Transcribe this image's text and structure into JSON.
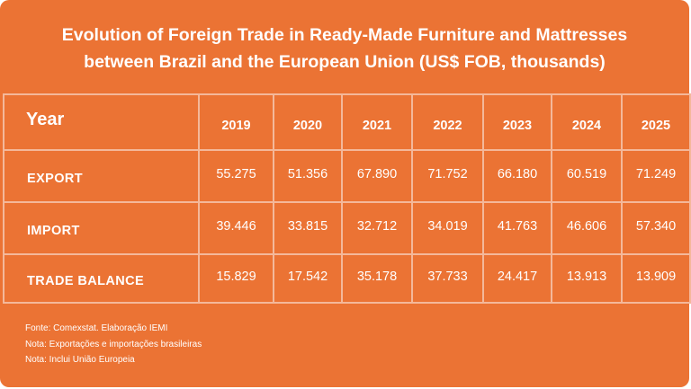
{
  "title": {
    "line1": "Evolution of Foreign Trade in Ready-Made Furniture and Mattresses",
    "line2": "between Brazil and the European Union (US$ FOB, thousands)"
  },
  "table": {
    "year_header": "Year",
    "years": [
      "2019",
      "2020",
      "2021",
      "2022",
      "2023",
      "2024",
      "2025"
    ],
    "rows": [
      {
        "label": "EXPORT",
        "values": [
          "55.275",
          "51.356",
          "67.890",
          "71.752",
          "66.180",
          "60.519",
          "71.249"
        ]
      },
      {
        "label": "IMPORT",
        "values": [
          "39.446",
          "33.815",
          "32.712",
          "34.019",
          "41.763",
          "46.606",
          "57.340"
        ]
      },
      {
        "label": "TRADE BALANCE",
        "values": [
          "15.829",
          "17.542",
          "35.178",
          "37.733",
          "24.417",
          "13.913",
          "13.909"
        ]
      }
    ]
  },
  "notes": [
    "Fonte: Comexstat. Elaboração IEMI",
    "Nota: Exportações e importações brasileiras",
    "Nota: Inclui União Europeia"
  ],
  "colors": {
    "background": "#eb7334",
    "grid_lines": "#f4b89a",
    "text": "#ffffff"
  }
}
